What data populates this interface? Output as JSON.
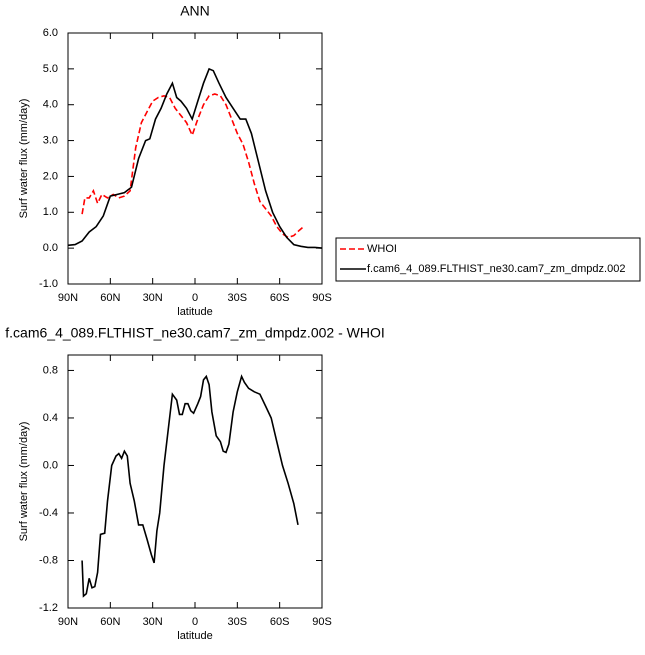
{
  "chart_data": [
    {
      "type": "line",
      "title": "ANN",
      "xlabel": "latitude",
      "ylabel": "Surf water flux (mm/day)",
      "xlim": [
        90,
        -90
      ],
      "ylim": [
        -1,
        6
      ],
      "xticks": [
        {
          "value": 90,
          "label": "90N"
        },
        {
          "value": 60,
          "label": "60N"
        },
        {
          "value": 30,
          "label": "30N"
        },
        0,
        {
          "value": -30,
          "label": "30S"
        },
        {
          "value": -60,
          "label": "60S"
        },
        {
          "value": -90,
          "label": "90S"
        }
      ],
      "yticks": [
        {
          "value": -1,
          "label": "-1.0"
        },
        {
          "value": 0,
          "label": "0.0"
        },
        {
          "value": 1,
          "label": "1.0"
        },
        {
          "value": 2,
          "label": "2.0"
        },
        {
          "value": 3,
          "label": "3.0"
        },
        {
          "value": 4,
          "label": "4.0"
        },
        {
          "value": 5,
          "label": "5.0"
        },
        {
          "value": 6,
          "label": "6.0"
        }
      ],
      "legend": "right",
      "series": [
        {
          "name": "WHOI",
          "color": "#ff0000",
          "line_style": "dashed",
          "x": [
            80,
            78,
            75,
            72,
            69,
            66,
            62,
            58,
            54,
            50,
            46,
            42,
            38,
            34,
            30,
            26,
            22,
            18,
            14,
            10,
            6,
            2,
            -2,
            -6,
            -10,
            -14,
            -18,
            -22,
            -26,
            -30,
            -34,
            -38,
            -42,
            -46,
            -50,
            -54,
            -58,
            -62,
            -66,
            -70,
            -74,
            -77
          ],
          "values": [
            0.95,
            1.4,
            1.4,
            1.6,
            1.25,
            1.5,
            1.4,
            1.5,
            1.4,
            1.45,
            1.6,
            2.8,
            3.5,
            3.8,
            4.1,
            4.2,
            4.25,
            4.2,
            3.9,
            3.7,
            3.5,
            3.15,
            3.6,
            4.0,
            4.25,
            4.3,
            4.25,
            4.0,
            3.6,
            3.2,
            2.9,
            2.4,
            1.8,
            1.3,
            1.1,
            0.9,
            0.6,
            0.4,
            0.3,
            0.35,
            0.5,
            0.6
          ]
        },
        {
          "name": "f.cam6_4_089.FLTHIST_ne30.cam7_zm_dmpdz.002",
          "color": "#000000",
          "line_style": "solid",
          "x": [
            90,
            85,
            80,
            75,
            70,
            65,
            60,
            55,
            50,
            45,
            40,
            35,
            32,
            28,
            24,
            20,
            16,
            13,
            10,
            6,
            2,
            -2,
            -6,
            -10,
            -13,
            -17,
            -22,
            -27,
            -32,
            -36,
            -40,
            -45,
            -50,
            -55,
            -60,
            -65,
            -70,
            -75,
            -80,
            -85,
            -90
          ],
          "values": [
            0.08,
            0.1,
            0.2,
            0.45,
            0.6,
            0.9,
            1.45,
            1.5,
            1.55,
            1.7,
            2.5,
            3.0,
            3.05,
            3.6,
            3.9,
            4.3,
            4.6,
            4.2,
            4.1,
            3.9,
            3.6,
            4.1,
            4.6,
            5.0,
            4.95,
            4.6,
            4.2,
            3.9,
            3.6,
            3.6,
            3.2,
            2.4,
            1.6,
            1.0,
            0.6,
            0.3,
            0.1,
            0.05,
            0.02,
            0.02,
            0.0
          ]
        }
      ]
    },
    {
      "type": "line",
      "title": "f.cam6_4_089.FLTHIST_ne30.cam7_zm_dmpdz.002 - WHOI",
      "xlabel": "latitude",
      "ylabel": "Surf water flux (mm/day)",
      "xlim": [
        90,
        -90
      ],
      "ylim": [
        -1.2,
        0.93
      ],
      "xticks": [
        {
          "value": 90,
          "label": "90N"
        },
        {
          "value": 60,
          "label": "60N"
        },
        {
          "value": 30,
          "label": "30N"
        },
        0,
        {
          "value": -30,
          "label": "30S"
        },
        {
          "value": -60,
          "label": "60S"
        },
        {
          "value": -90,
          "label": "90S"
        }
      ],
      "yticks": [
        -1.2,
        -0.8,
        -0.4,
        {
          "value": 0,
          "label": "0.0"
        },
        0.4,
        0.8
      ],
      "series": [
        {
          "color": "#000000",
          "line_style": "solid",
          "x": [
            80,
            79,
            77,
            75,
            73,
            71,
            69,
            67,
            64,
            62,
            59,
            56,
            54,
            52,
            50,
            48,
            46,
            43,
            40,
            37,
            34,
            31,
            29,
            27,
            25,
            22,
            19,
            16,
            13,
            11,
            9,
            7,
            5,
            3,
            1,
            -2,
            -4,
            -6,
            -8,
            -10,
            -12,
            -15,
            -18,
            -20,
            -22,
            -24,
            -27,
            -30,
            -33,
            -35,
            -38,
            -42,
            -46,
            -50,
            -54,
            -58,
            -62,
            -66,
            -70,
            -73
          ],
          "values": [
            -0.8,
            -1.1,
            -1.08,
            -0.95,
            -1.03,
            -1.02,
            -0.9,
            -0.58,
            -0.57,
            -0.3,
            0.0,
            0.08,
            0.1,
            0.06,
            0.12,
            0.08,
            -0.15,
            -0.3,
            -0.5,
            -0.5,
            -0.62,
            -0.75,
            -0.82,
            -0.55,
            -0.4,
            0.0,
            0.3,
            0.6,
            0.55,
            0.43,
            0.43,
            0.52,
            0.52,
            0.46,
            0.44,
            0.52,
            0.58,
            0.72,
            0.75,
            0.68,
            0.45,
            0.25,
            0.2,
            0.12,
            0.11,
            0.18,
            0.45,
            0.62,
            0.75,
            0.7,
            0.65,
            0.62,
            0.6,
            0.5,
            0.4,
            0.2,
            0.0,
            -0.15,
            -0.32,
            -0.5
          ]
        }
      ]
    }
  ]
}
